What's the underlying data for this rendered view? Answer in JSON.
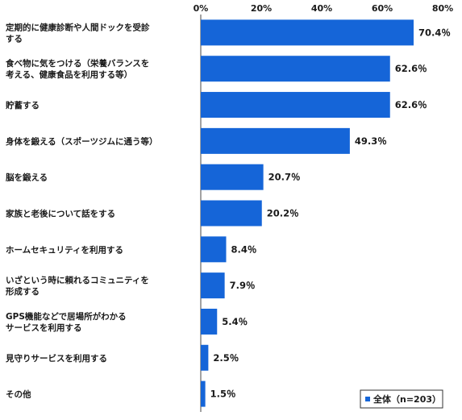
{
  "chart_data": {
    "type": "bar",
    "orientation": "horizontal",
    "categories": [
      [
        "定期的に健康診断や人間ドックを受診",
        "する"
      ],
      [
        "食べ物に気をつける（栄養バランスを",
        "考える、健康食品を利用する等）"
      ],
      [
        "貯蓄する"
      ],
      [
        "身体を鍛える（スポーツジムに通う等）"
      ],
      [
        "脳を鍛える"
      ],
      [
        "家族と老後について話をする"
      ],
      [
        "ホームセキュリティを利用する"
      ],
      [
        "いざという時に頼れるコミュニティを",
        "形成する"
      ],
      [
        "GPS機能などで居場所がわかる",
        "サービスを利用する"
      ],
      [
        "見守りサービスを利用する"
      ],
      [
        "その他"
      ]
    ],
    "series": [
      {
        "name": "全体（n=203）",
        "values": [
          70.4,
          62.6,
          62.6,
          49.3,
          20.7,
          20.2,
          8.4,
          7.9,
          5.4,
          2.5,
          1.5
        ],
        "labels": [
          "70.4％",
          "62.6％",
          "62.6％",
          "49.3％",
          "20.7％",
          "20.2％",
          "8.4％",
          "7.9％",
          "5.4％",
          "2.5％",
          "1.5％"
        ],
        "color": "#1565d8"
      }
    ],
    "xaxis": {
      "range": [
        0,
        80
      ],
      "ticks": [
        0,
        20,
        40,
        60,
        80
      ],
      "tick_labels": [
        "0%",
        "20%",
        "40%",
        "60%",
        "80%"
      ],
      "position": "top"
    },
    "grid": false,
    "legend_position": "bottom-right"
  }
}
